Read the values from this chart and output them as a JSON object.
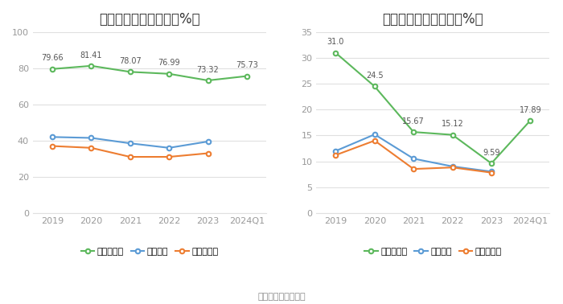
{
  "categories": [
    "2019",
    "2020",
    "2021",
    "2022",
    "2023",
    "2024Q1"
  ],
  "gross_margin": {
    "title": "历年毛利率变化情况（%）",
    "company": [
      79.66,
      81.41,
      78.07,
      76.99,
      73.32,
      75.73
    ],
    "industry_avg": [
      42.0,
      41.5,
      38.5,
      36.0,
      39.5,
      null
    ],
    "industry_median": [
      37.0,
      36.0,
      31.0,
      31.0,
      33.0,
      null
    ],
    "ylim": [
      0,
      100
    ],
    "yticks": [
      0,
      20,
      40,
      60,
      80,
      100
    ]
  },
  "net_margin": {
    "title": "历年净利率变化情况（%）",
    "company": [
      31.0,
      24.5,
      15.67,
      15.12,
      9.59,
      17.89
    ],
    "industry_avg": [
      12.0,
      15.2,
      10.5,
      9.0,
      8.0,
      null
    ],
    "industry_median": [
      11.2,
      14.0,
      8.5,
      8.8,
      7.8,
      null
    ],
    "ylim": [
      0,
      35
    ],
    "yticks": [
      0,
      5,
      10,
      15,
      20,
      25,
      30,
      35
    ]
  },
  "colors": {
    "company": "#5cb85c",
    "industry_avg": "#5b9bd5",
    "industry_median": "#ed7d31"
  },
  "legend_labels": [
    "公司毛利率",
    "行业均值",
    "行业中位数"
  ],
  "legend_labels_net": [
    "公司净利率",
    "行业均值",
    "行业中位数"
  ],
  "source_text": "数据来源：恒生聚源",
  "background_color": "#ffffff",
  "grid_color": "#e0e0e0",
  "title_fontsize": 12,
  "label_fontsize": 8,
  "legend_fontsize": 8,
  "source_fontsize": 8,
  "annot_fontsize": 7,
  "tick_color": "#999999"
}
